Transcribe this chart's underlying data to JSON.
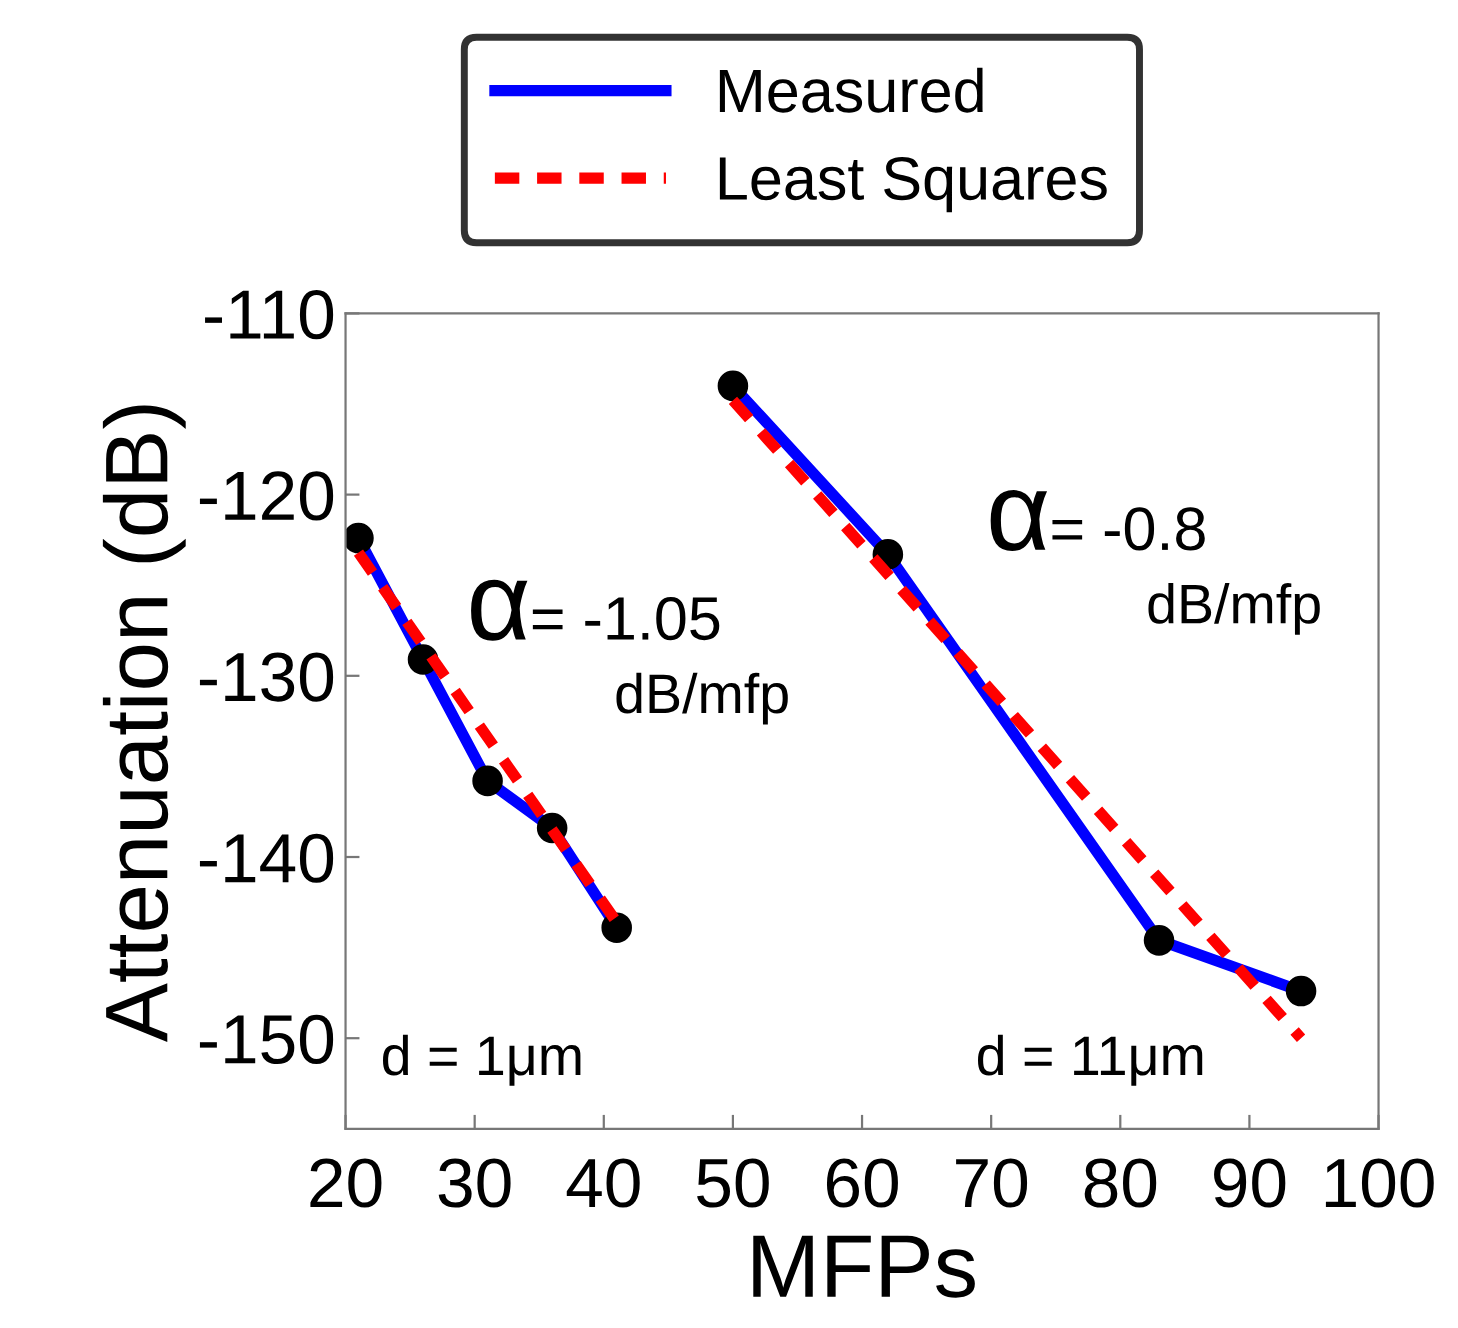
{
  "chart_data": {
    "type": "line",
    "xlabel": "MFPs",
    "ylabel": "Attenuation (dB)",
    "xlim": [
      20,
      100
    ],
    "xticks": [
      20,
      30,
      40,
      50,
      60,
      70,
      80,
      90,
      100
    ],
    "ylim": [
      -155,
      -110
    ],
    "yticks": [
      -150,
      -140,
      -130,
      -120,
      -110
    ],
    "series": [
      {
        "name": "Measured",
        "color": "#0000ff",
        "x": [
          21,
          26,
          31,
          36,
          41
        ],
        "values": [
          -122.4,
          -129.1,
          -135.8,
          -138.4,
          -143.9
        ],
        "marker": "circle",
        "line_style": "solid"
      },
      {
        "color": "#0000ff",
        "x": [
          50,
          62,
          83,
          94
        ],
        "values": [
          -114.0,
          -123.3,
          -144.6,
          -147.4
        ],
        "marker": "circle",
        "line_style": "solid"
      },
      {
        "name": "Least Squares",
        "color": "#ff0000",
        "x": [
          21,
          41
        ],
        "values": [
          -123.2,
          -143.6
        ],
        "line_style": "dashed"
      },
      {
        "color": "#ff0000",
        "x": [
          50,
          94
        ],
        "values": [
          -114.8,
          -150
        ],
        "line_style": "dashed"
      }
    ],
    "annotations": [
      "α = -1.05",
      "dB/mfp",
      "α = -0.8",
      "dB/mfp",
      "d = 1μm",
      "d = 11μm"
    ],
    "grid": false,
    "legend": "top"
  }
}
